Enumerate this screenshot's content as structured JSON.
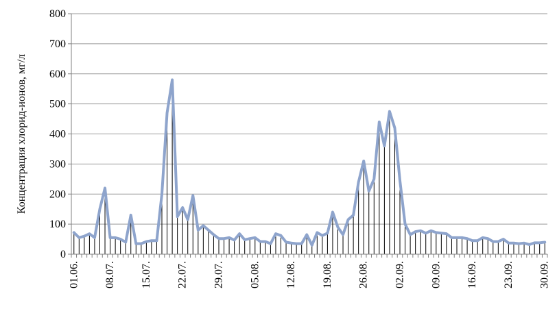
{
  "chart_data": {
    "type": "line",
    "ylabel": "Концентрация хлорид-ионов, мг/л",
    "xlabel": "",
    "ylim": [
      0,
      800
    ],
    "yticks": [
      0,
      100,
      200,
      300,
      400,
      500,
      600,
      700,
      800
    ],
    "grid": "horizontal",
    "x_tick_labels": [
      "01.06.",
      "08.07.",
      "15.07.",
      "22.07.",
      "29.07.",
      "05.08.",
      "12.08.",
      "19.08.",
      "26.08.",
      "02.09.",
      "09.09.",
      "16.09.",
      "23.09.",
      "30.09."
    ],
    "x_tick_index": [
      0,
      7,
      14,
      21,
      28,
      35,
      42,
      49,
      56,
      63,
      70,
      77,
      84,
      91
    ],
    "series": [
      {
        "color": "#8ea4cc",
        "values": [
          72,
          55,
          60,
          68,
          55,
          150,
          220,
          55,
          55,
          50,
          40,
          130,
          35,
          35,
          42,
          45,
          45,
          200,
          470,
          580,
          125,
          155,
          115,
          195,
          80,
          95,
          80,
          65,
          52,
          52,
          55,
          47,
          68,
          48,
          52,
          55,
          42,
          42,
          35,
          68,
          62,
          40,
          37,
          35,
          35,
          65,
          30,
          72,
          62,
          70,
          140,
          90,
          65,
          115,
          130,
          240,
          310,
          210,
          250,
          440,
          360,
          475,
          420,
          245,
          100,
          65,
          75,
          78,
          70,
          78,
          72,
          70,
          68,
          55,
          55,
          55,
          52,
          45,
          45,
          55,
          52,
          42,
          42,
          50,
          37,
          37,
          35,
          37,
          32,
          38,
          38,
          40
        ]
      }
    ],
    "colors": {
      "line": "#8ea4cc",
      "drop_lines": "#000000",
      "grid": "#999999",
      "axis": "#808080"
    }
  }
}
